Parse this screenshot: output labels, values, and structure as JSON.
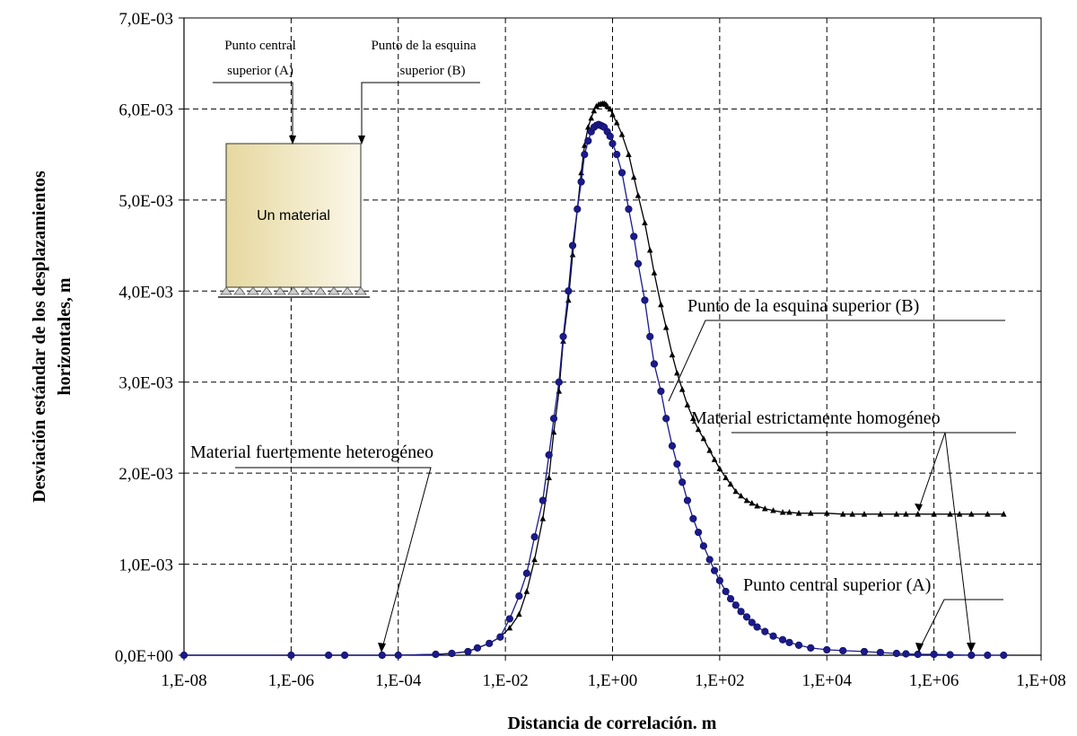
{
  "chart_data": {
    "type": "scatter",
    "x_scale": "log",
    "xlim": [
      1e-08,
      100000000.0
    ],
    "ylim": [
      0,
      0.007
    ],
    "grid": true,
    "xlabel": "Distancia de correlación. m",
    "ylabel_line1": "Desviación estándar de los desplazamientos",
    "ylabel_line2": "horizontales, m",
    "x_ticks": [
      {
        "value": 1e-08,
        "label": "1,E-08"
      },
      {
        "value": 1e-06,
        "label": "1,E-06"
      },
      {
        "value": 0.0001,
        "label": "1,E-04"
      },
      {
        "value": 0.01,
        "label": "1,E-02"
      },
      {
        "value": 1,
        "label": "1,E+00"
      },
      {
        "value": 100.0,
        "label": "1,E+02"
      },
      {
        "value": 10000.0,
        "label": "1,E+04"
      },
      {
        "value": 1000000.0,
        "label": "1,E+06"
      },
      {
        "value": 100000000.0,
        "label": "1,E+08"
      }
    ],
    "y_ticks": [
      {
        "value": 0,
        "label": "0,0E+00"
      },
      {
        "value": 0.001,
        "label": "1,0E-03"
      },
      {
        "value": 0.002,
        "label": "2,0E-03"
      },
      {
        "value": 0.003,
        "label": "3,0E-03"
      },
      {
        "value": 0.004,
        "label": "4,0E-03"
      },
      {
        "value": 0.005,
        "label": "5,0E-03"
      },
      {
        "value": 0.006,
        "label": "6,0E-03"
      },
      {
        "value": 0.007,
        "label": "7,0E-03"
      }
    ],
    "series": [
      {
        "name": "Punto de la esquina superior (B)",
        "marker": "triangle",
        "color": "#000000",
        "points": [
          [
            1e-08,
            0
          ],
          [
            1e-06,
            0
          ],
          [
            5e-06,
            0
          ],
          [
            1e-05,
            0
          ],
          [
            5e-05,
            0
          ],
          [
            0.0001,
            0
          ],
          [
            0.0005,
            1e-05
          ],
          [
            0.001,
            2e-05
          ],
          [
            0.002,
            4e-05
          ],
          [
            0.003,
            8e-05
          ],
          [
            0.005,
            0.00013
          ],
          [
            0.008,
            0.0002
          ],
          [
            0.012,
            0.0003
          ],
          [
            0.018,
            0.00045
          ],
          [
            0.025,
            0.0007
          ],
          [
            0.035,
            0.00105
          ],
          [
            0.05,
            0.0015
          ],
          [
            0.065,
            0.00195
          ],
          [
            0.08,
            0.00245
          ],
          [
            0.1,
            0.0029
          ],
          [
            0.12,
            0.00345
          ],
          [
            0.15,
            0.0039
          ],
          [
            0.18,
            0.0044
          ],
          [
            0.22,
            0.0049
          ],
          [
            0.26,
            0.0053
          ],
          [
            0.3,
            0.0056
          ],
          [
            0.35,
            0.0058
          ],
          [
            0.4,
            0.0059
          ],
          [
            0.45,
            0.00598
          ],
          [
            0.5,
            0.00603
          ],
          [
            0.55,
            0.00605
          ],
          [
            0.6,
            0.006055
          ],
          [
            0.65,
            0.00606
          ],
          [
            0.7,
            0.00606
          ],
          [
            0.75,
            0.00605
          ],
          [
            0.8,
            0.00603
          ],
          [
            0.9,
            0.006
          ],
          [
            1,
            0.00594
          ],
          [
            1.2,
            0.00585
          ],
          [
            1.5,
            0.00572
          ],
          [
            2,
            0.0055
          ],
          [
            2.5,
            0.00525
          ],
          [
            3,
            0.00505
          ],
          [
            4,
            0.00475
          ],
          [
            5,
            0.00445
          ],
          [
            6,
            0.0042
          ],
          [
            8,
            0.00385
          ],
          [
            10,
            0.0036
          ],
          [
            13,
            0.0033
          ],
          [
            16,
            0.0031
          ],
          [
            20,
            0.00292
          ],
          [
            25,
            0.00275
          ],
          [
            32,
            0.0026
          ],
          [
            40,
            0.00248
          ],
          [
            50,
            0.00238
          ],
          [
            65,
            0.00225
          ],
          [
            80,
            0.00215
          ],
          [
            100,
            0.00205
          ],
          [
            130,
            0.00195
          ],
          [
            160,
            0.00188
          ],
          [
            200,
            0.0018
          ],
          [
            250,
            0.00175
          ],
          [
            320,
            0.0017
          ],
          [
            400,
            0.00167
          ],
          [
            500,
            0.00164
          ],
          [
            700,
            0.00161
          ],
          [
            1000,
            0.00159
          ],
          [
            1500,
            0.00157
          ],
          [
            2000,
            0.00157
          ],
          [
            3000,
            0.00156
          ],
          [
            5000,
            0.00156
          ],
          [
            10000,
            0.00156
          ],
          [
            20000,
            0.00155
          ],
          [
            30000,
            0.00155
          ],
          [
            50000,
            0.00155
          ],
          [
            100000,
            0.00155
          ],
          [
            200000,
            0.00155
          ],
          [
            300000,
            0.00155
          ],
          [
            500000,
            0.00155
          ],
          [
            1000000,
            0.00155
          ],
          [
            2000000,
            0.00155
          ],
          [
            3000000,
            0.00155
          ],
          [
            5000000,
            0.00155
          ],
          [
            10000000,
            0.00155
          ],
          [
            20000000,
            0.00155
          ]
        ]
      },
      {
        "name": "Punto central superior (A)",
        "marker": "circle",
        "color": "#1a1a8c",
        "points": [
          [
            1e-08,
            0
          ],
          [
            1e-06,
            0
          ],
          [
            5e-06,
            0
          ],
          [
            1e-05,
            0
          ],
          [
            5e-05,
            0
          ],
          [
            0.0001,
            0
          ],
          [
            0.0005,
            1e-05
          ],
          [
            0.001,
            2e-05
          ],
          [
            0.002,
            4e-05
          ],
          [
            0.003,
            8e-05
          ],
          [
            0.005,
            0.00013
          ],
          [
            0.008,
            0.0002
          ],
          [
            0.012,
            0.0004
          ],
          [
            0.018,
            0.00065
          ],
          [
            0.025,
            0.0009
          ],
          [
            0.035,
            0.0013
          ],
          [
            0.05,
            0.0017
          ],
          [
            0.065,
            0.0022
          ],
          [
            0.08,
            0.0026
          ],
          [
            0.1,
            0.003
          ],
          [
            0.12,
            0.0035
          ],
          [
            0.15,
            0.004
          ],
          [
            0.18,
            0.0045
          ],
          [
            0.22,
            0.0049
          ],
          [
            0.26,
            0.0052
          ],
          [
            0.3,
            0.0055
          ],
          [
            0.35,
            0.00565
          ],
          [
            0.4,
            0.00575
          ],
          [
            0.45,
            0.0058
          ],
          [
            0.5,
            0.00582
          ],
          [
            0.55,
            0.00583
          ],
          [
            0.6,
            0.00582
          ],
          [
            0.65,
            0.00581
          ],
          [
            0.7,
            0.0058
          ],
          [
            0.8,
            0.00575
          ],
          [
            0.9,
            0.0057
          ],
          [
            1,
            0.00562
          ],
          [
            1.2,
            0.0055
          ],
          [
            1.5,
            0.0053
          ],
          [
            2,
            0.0049
          ],
          [
            2.5,
            0.0046
          ],
          [
            3,
            0.0043
          ],
          [
            4,
            0.0039
          ],
          [
            5,
            0.0035
          ],
          [
            6,
            0.0032
          ],
          [
            8,
            0.0029
          ],
          [
            10,
            0.0026
          ],
          [
            13,
            0.0023
          ],
          [
            16,
            0.0021
          ],
          [
            20,
            0.0019
          ],
          [
            25,
            0.0017
          ],
          [
            32,
            0.0015
          ],
          [
            40,
            0.00135
          ],
          [
            50,
            0.0012
          ],
          [
            65,
            0.00105
          ],
          [
            80,
            0.00093
          ],
          [
            100,
            0.00082
          ],
          [
            130,
            0.0007
          ],
          [
            160,
            0.00062
          ],
          [
            200,
            0.00055
          ],
          [
            250,
            0.00048
          ],
          [
            320,
            0.00042
          ],
          [
            400,
            0.00036
          ],
          [
            500,
            0.00031
          ],
          [
            700,
            0.00026
          ],
          [
            1000,
            0.00021
          ],
          [
            1500,
            0.00017
          ],
          [
            2000,
            0.00014
          ],
          [
            3000,
            0.00011
          ],
          [
            5000,
            8e-05
          ],
          [
            10000,
            6e-05
          ],
          [
            20000,
            5e-05
          ],
          [
            50000,
            4e-05
          ],
          [
            100000,
            3e-05
          ],
          [
            200000,
            2e-05
          ],
          [
            300000,
            1.5e-05
          ],
          [
            500000,
            1e-05
          ],
          [
            1000000,
            1e-05
          ],
          [
            2000000,
            5e-06
          ],
          [
            5000000,
            0
          ],
          [
            10000000,
            0
          ],
          [
            20000000,
            0
          ]
        ]
      }
    ],
    "annotations": [
      {
        "text": "Punto de la esquina superior (B)"
      },
      {
        "text": "Material estrictamente homogéneo"
      },
      {
        "text": "Material fuertemente heterogéneo"
      },
      {
        "text": "Punto central superior (A)"
      }
    ],
    "inset": {
      "label_a_line1": "Punto central",
      "label_a_line2": "superior (A)",
      "label_b_line1": "Punto de la esquina",
      "label_b_line2": "superior (B)",
      "material_label": "Un material"
    }
  }
}
